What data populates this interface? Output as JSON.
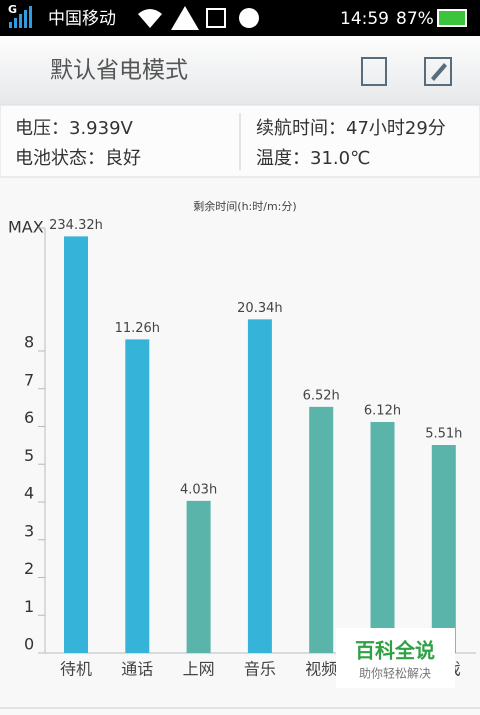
{
  "status_bar": {
    "network": "G",
    "carrier": "中国移动",
    "time": "14:59",
    "battery": "87%"
  },
  "header": {
    "title": "默认省电模式"
  },
  "info": {
    "voltage": "电压：3.939V",
    "endurance": "续航时间：47小时29分",
    "battery_state": "电池状态：良好",
    "temperature": "温度：31.0℃"
  },
  "watermark": {
    "title": "百科全说",
    "subtitle": "助你轻松解决"
  },
  "chart_data": {
    "type": "bar",
    "subtitle": "剩余时间(h:时/m:分)",
    "categories": [
      "待机",
      "通话",
      "上网",
      "音乐",
      "视频",
      null,
      "戏"
    ],
    "values": [
      234.32,
      11.26,
      4.03,
      20.34,
      6.52,
      6.12,
      5.51
    ],
    "value_labels": [
      "234.32h",
      "11.26h",
      "4.03h",
      "20.34h",
      "6.52h",
      "6.12h",
      "5.51h"
    ],
    "colors": [
      "#36b3d9",
      "#36b3d9",
      "#5ab4a9",
      "#36b3d9",
      "#5ab4a9",
      "#5ab4a9",
      "#5ab4a9"
    ],
    "ylim": [
      0,
      300
    ],
    "yticks": [
      0,
      1,
      2,
      3,
      4,
      5,
      6,
      7,
      8,
      {
        "value": 300,
        "label": "MAX"
      }
    ],
    "yscale": "log above last numeric tick",
    "grid": false
  }
}
